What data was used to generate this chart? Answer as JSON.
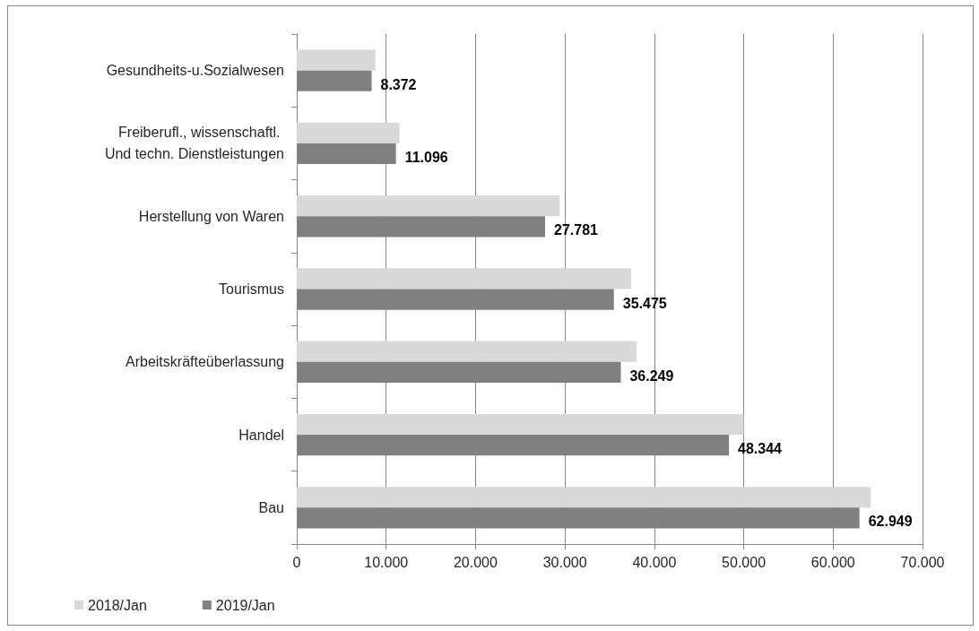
{
  "chart_data": {
    "type": "bar",
    "orientation": "horizontal",
    "categories": [
      "Gesundheits-u.Sozialwesen",
      "Freiberufl., wissenschaftl. Und techn. Dienstleistungen",
      "Herstellung von Waren",
      "Tourismus",
      "Arbeitskräfteüberlassung",
      "Handel",
      "Bau"
    ],
    "series": [
      {
        "name": "2018/Jan",
        "color": "#d9d9d9",
        "values": [
          8800,
          11500,
          29400,
          37400,
          38000,
          50000,
          64200
        ]
      },
      {
        "name": "2019/Jan",
        "color": "#808080",
        "values": [
          8372,
          11096,
          27781,
          35475,
          36249,
          48344,
          62949
        ],
        "value_labels": [
          "8.372",
          "11.096",
          "27.781",
          "35.475",
          "36.249",
          "48.344",
          "62.949"
        ]
      }
    ],
    "xlim": [
      0,
      70000
    ],
    "xticks": [
      0,
      {
        "value": 10000,
        "label": "10.000"
      },
      {
        "value": 20000,
        "label": "20.000"
      },
      {
        "value": 30000,
        "label": "30.000"
      },
      {
        "value": 40000,
        "label": "40.000"
      },
      {
        "value": 50000,
        "label": "50.000"
      },
      {
        "value": 60000,
        "label": "60.000"
      },
      {
        "value": 70000,
        "label": "70.000"
      }
    ],
    "grid": "x",
    "legend": "bottom left"
  }
}
